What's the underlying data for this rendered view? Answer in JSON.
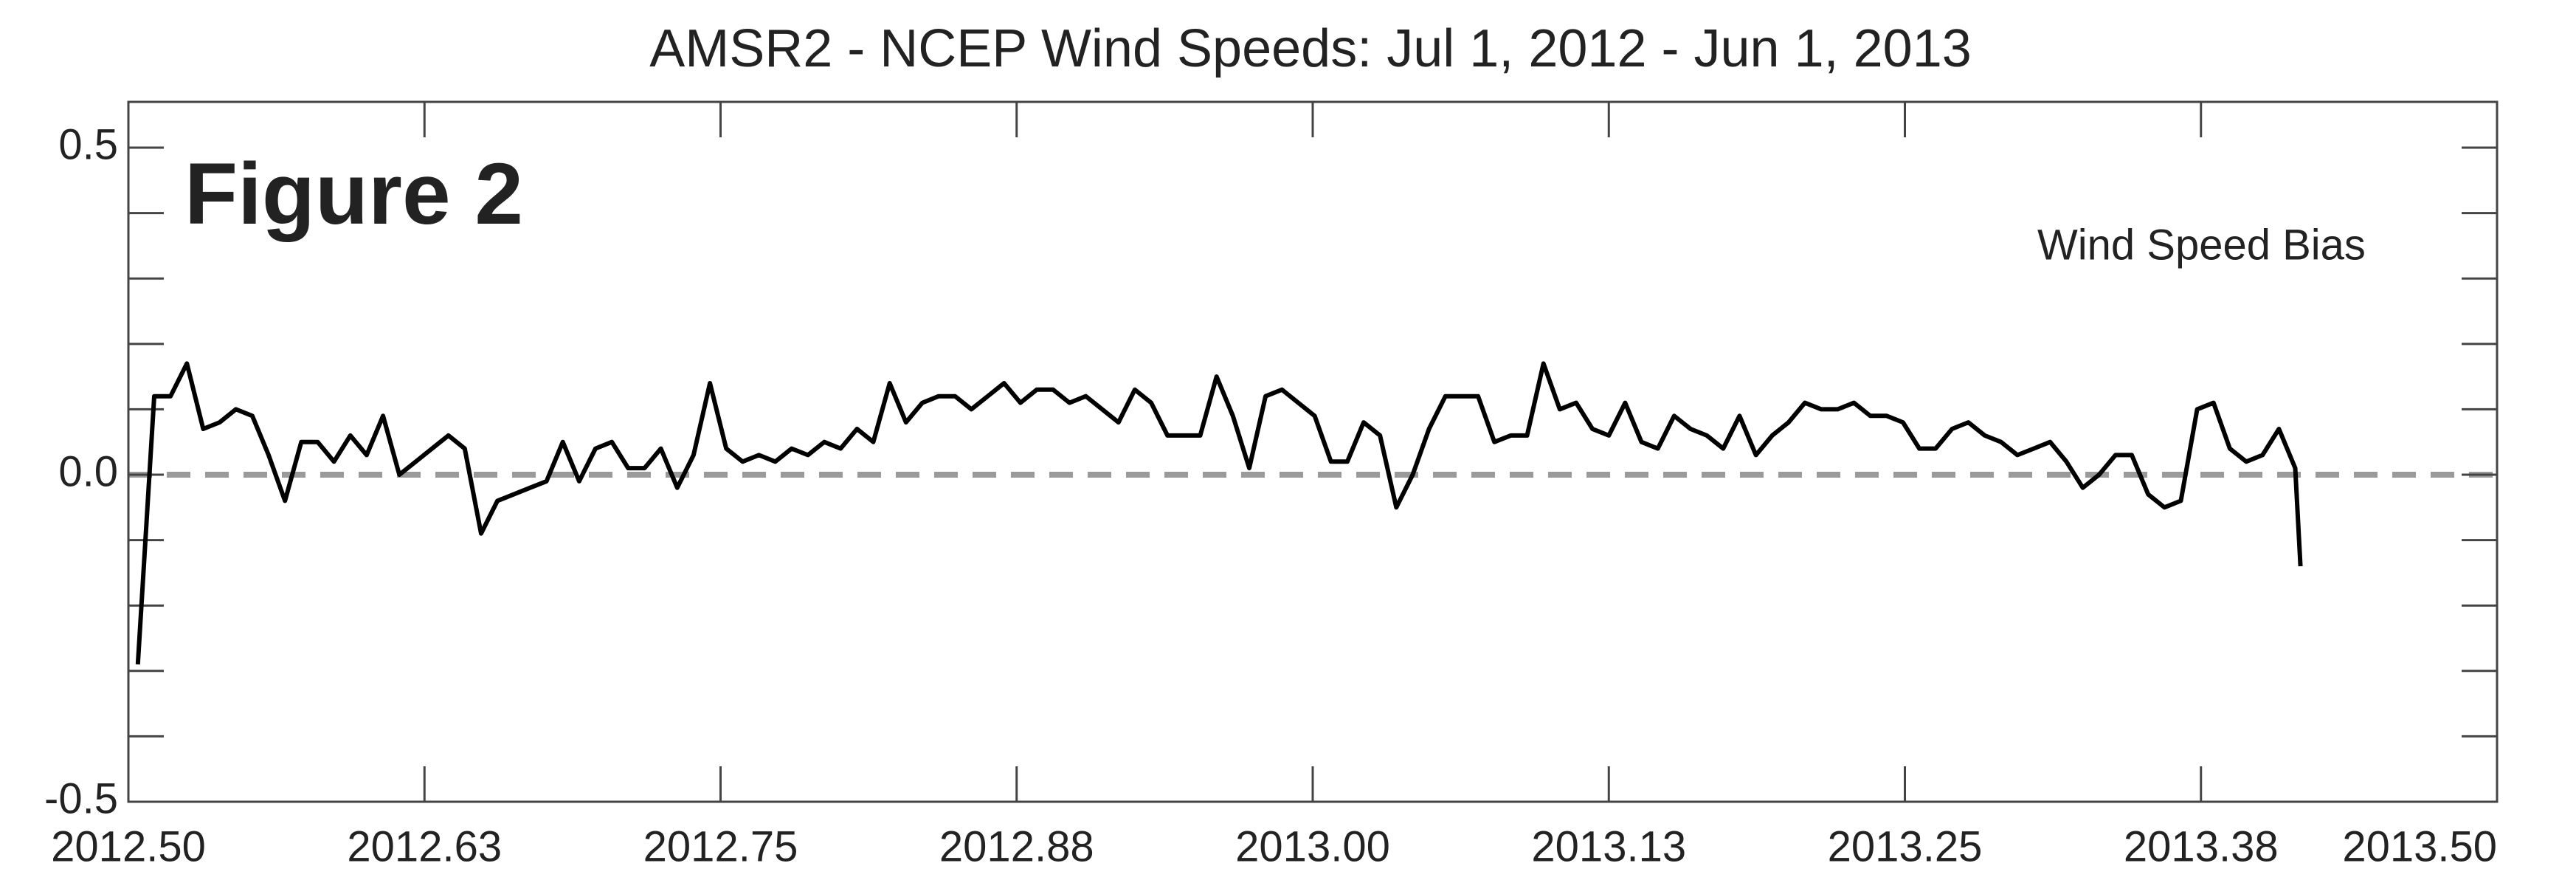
{
  "chart_data": {
    "type": "line",
    "title": "AMSR2 - NCEP Wind Speeds:  Jul 1, 2012 - Jun 1, 2013",
    "annotation": "Figure 2",
    "xlim": [
      2012.5,
      2013.5
    ],
    "ylim": [
      -0.5,
      0.57
    ],
    "xticks": [
      {
        "value": 2012.5,
        "label": "2012.50"
      },
      {
        "value": 2012.625,
        "label": "2012.63"
      },
      {
        "value": 2012.75,
        "label": "2012.75"
      },
      {
        "value": 2012.875,
        "label": "2012.88"
      },
      {
        "value": 2013.0,
        "label": "2013.00"
      },
      {
        "value": 2013.125,
        "label": "2013.13"
      },
      {
        "value": 2013.25,
        "label": "2013.25"
      },
      {
        "value": 2013.375,
        "label": "2013.38"
      },
      {
        "value": 2013.5,
        "label": "2013.50"
      }
    ],
    "yticks": [
      -0.5,
      {
        "value": 0,
        "label": "0.0"
      },
      0.5
    ],
    "y_minor_ticks": [
      -0.4,
      -0.3,
      -0.2,
      -0.1,
      0.1,
      0.2,
      0.3,
      0.4
    ],
    "reference_line": {
      "value": 0,
      "color": "#9a9a9a",
      "style": "dashed"
    },
    "x": [
      2012.504,
      2012.5109,
      2012.5178,
      2012.5247,
      2012.5316,
      2012.5385,
      2012.5454,
      2012.5523,
      2012.5592,
      2012.5661,
      2012.573,
      2012.5799,
      2012.5868,
      2012.5937,
      2012.6006,
      2012.6075,
      2012.6144,
      2012.6213,
      2012.6282,
      2012.6351,
      2012.642,
      2012.6489,
      2012.6558,
      2012.6627,
      2012.6696,
      2012.6765,
      2012.6834,
      2012.6903,
      2012.6972,
      2012.7041,
      2012.711,
      2012.7179,
      2012.7248,
      2012.7317,
      2012.7386,
      2012.7455,
      2012.7524,
      2012.7593,
      2012.7662,
      2012.7731,
      2012.78,
      2012.7869,
      2012.7938,
      2012.8007,
      2012.8076,
      2012.8145,
      2012.8214,
      2012.8283,
      2012.8352,
      2012.8421,
      2012.849,
      2012.8559,
      2012.8628,
      2012.8697,
      2012.8766,
      2012.8835,
      2012.8904,
      2012.8973,
      2012.9042,
      2012.9111,
      2012.918,
      2012.9249,
      2012.9318,
      2012.9387,
      2012.9456,
      2012.9525,
      2012.9594,
      2012.9663,
      2012.9732,
      2012.9801,
      2012.987,
      2012.9939,
      2013.0008,
      2013.0077,
      2013.0146,
      2013.0215,
      2013.0284,
      2013.0353,
      2013.0422,
      2013.0491,
      2013.056,
      2013.0629,
      2013.0698,
      2013.0767,
      2013.0836,
      2013.0905,
      2013.0974,
      2013.1043,
      2013.1112,
      2013.1181,
      2013.125,
      2013.1319,
      2013.1388,
      2013.1457,
      2013.1526,
      2013.1595,
      2013.1664,
      2013.1733,
      2013.1802,
      2013.1871,
      2013.194,
      2013.2009,
      2013.2078,
      2013.2147,
      2013.2216,
      2013.2285,
      2013.2354,
      2013.2423,
      2013.2492,
      2013.2561,
      2013.263,
      2013.2699,
      2013.2768,
      2013.2837,
      2013.2906,
      2013.2975,
      2013.3044,
      2013.3113,
      2013.3182,
      2013.3251,
      2013.332,
      2013.3389,
      2013.3458,
      2013.3527,
      2013.3596,
      2013.3665,
      2013.3734,
      2013.3803,
      2013.3872,
      2013.3941,
      2013.401,
      2013.4079,
      2013.4148,
      2013.417
    ],
    "series": [
      {
        "name": "Wind Speed Bias",
        "color": "#000000",
        "values": [
          -0.29,
          0.12,
          0.12,
          0.17,
          0.07,
          0.08,
          0.1,
          0.09,
          0.03,
          -0.04,
          0.05,
          0.05,
          0.02,
          0.06,
          0.03,
          0.09,
          0.0,
          0.02,
          0.04,
          0.06,
          0.04,
          -0.09,
          -0.04,
          -0.03,
          -0.02,
          -0.01,
          0.05,
          -0.01,
          0.04,
          0.05,
          0.01,
          0.01,
          0.04,
          -0.02,
          0.03,
          0.14,
          0.04,
          0.02,
          0.03,
          0.02,
          0.04,
          0.03,
          0.05,
          0.04,
          0.07,
          0.05,
          0.14,
          0.08,
          0.11,
          0.12,
          0.12,
          0.1,
          0.12,
          0.14,
          0.11,
          0.13,
          0.13,
          0.11,
          0.12,
          0.1,
          0.08,
          0.13,
          0.11,
          0.06,
          0.06,
          0.06,
          0.15,
          0.09,
          0.01,
          0.12,
          0.13,
          0.11,
          0.09,
          0.02,
          0.02,
          0.08,
          0.06,
          -0.05,
          0.0,
          0.07,
          0.12,
          0.12,
          0.12,
          0.05,
          0.06,
          0.06,
          0.17,
          0.1,
          0.11,
          0.07,
          0.06,
          0.11,
          0.05,
          0.04,
          0.09,
          0.07,
          0.06,
          0.04,
          0.09,
          0.03,
          0.06,
          0.08,
          0.11,
          0.1,
          0.1,
          0.11,
          0.09,
          0.09,
          0.08,
          0.04,
          0.04,
          0.07,
          0.08,
          0.06,
          0.05,
          0.03,
          0.04,
          0.05,
          0.02,
          -0.02,
          0.0,
          0.03,
          0.03,
          -0.03,
          -0.05,
          -0.04,
          0.1,
          0.11,
          0.04,
          0.02,
          0.03,
          0.07,
          0.01,
          -0.14
        ]
      }
    ]
  }
}
